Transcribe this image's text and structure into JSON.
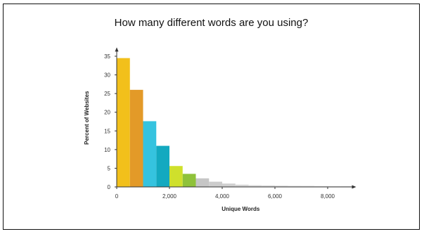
{
  "title": "How many different words are you using?",
  "chart_data": {
    "type": "bar",
    "title": "How many different words are you using?",
    "xlabel": "Unique Words",
    "ylabel": "Percent of Websites",
    "xlim": [
      0,
      9000
    ],
    "ylim": [
      0,
      37
    ],
    "x_ticks": [
      {
        "value": 0,
        "label": "0"
      },
      {
        "value": 2000,
        "label": "2,000"
      },
      {
        "value": 4000,
        "label": "4,000"
      },
      {
        "value": 6000,
        "label": "6,000"
      },
      {
        "value": 8000,
        "label": "8,000"
      }
    ],
    "y_ticks": [
      {
        "value": 0,
        "label": "0"
      },
      {
        "value": 5,
        "label": "5"
      },
      {
        "value": 10,
        "label": "10"
      },
      {
        "value": 15,
        "label": "15"
      },
      {
        "value": 20,
        "label": "20"
      },
      {
        "value": 25,
        "label": "25"
      },
      {
        "value": 30,
        "label": "30"
      },
      {
        "value": 35,
        "label": "35"
      }
    ],
    "bins": [
      {
        "start": 0,
        "end": 500,
        "value": 34.5,
        "color": "#f2c01b"
      },
      {
        "start": 500,
        "end": 1000,
        "value": 26,
        "color": "#e39a28"
      },
      {
        "start": 1000,
        "end": 1500,
        "value": 17.6,
        "color": "#35c3df"
      },
      {
        "start": 1500,
        "end": 2000,
        "value": 11,
        "color": "#13a9c0"
      },
      {
        "start": 2000,
        "end": 2500,
        "value": 5.6,
        "color": "#cfe02c"
      },
      {
        "start": 2500,
        "end": 3000,
        "value": 3.5,
        "color": "#8fc23a"
      },
      {
        "start": 3000,
        "end": 3500,
        "value": 2.3,
        "color": "#c6c6c6"
      },
      {
        "start": 3500,
        "end": 4000,
        "value": 1.4,
        "color": "#cccccc"
      },
      {
        "start": 4000,
        "end": 4500,
        "value": 0.9,
        "color": "#d0d0d0"
      },
      {
        "start": 4500,
        "end": 5000,
        "value": 0.6,
        "color": "#d4d4d4"
      },
      {
        "start": 5000,
        "end": 5500,
        "value": 0.45,
        "color": "#d7d7d7"
      },
      {
        "start": 5500,
        "end": 6000,
        "value": 0.4,
        "color": "#d9d9d9"
      },
      {
        "start": 6000,
        "end": 6500,
        "value": 0.35,
        "color": "#dbdbdb"
      },
      {
        "start": 6500,
        "end": 7000,
        "value": 0.3,
        "color": "#dddddd"
      },
      {
        "start": 7000,
        "end": 7500,
        "value": 0.3,
        "color": "#dfdfdf"
      },
      {
        "start": 7500,
        "end": 8000,
        "value": 0.25,
        "color": "#e1e1e1"
      },
      {
        "start": 8000,
        "end": 8500,
        "value": 0.25,
        "color": "#e3e3e3"
      },
      {
        "start": 8500,
        "end": 9000,
        "value": 0.25,
        "color": "#e6e6e6"
      }
    ],
    "grid": false,
    "axis_color": "#333333"
  }
}
